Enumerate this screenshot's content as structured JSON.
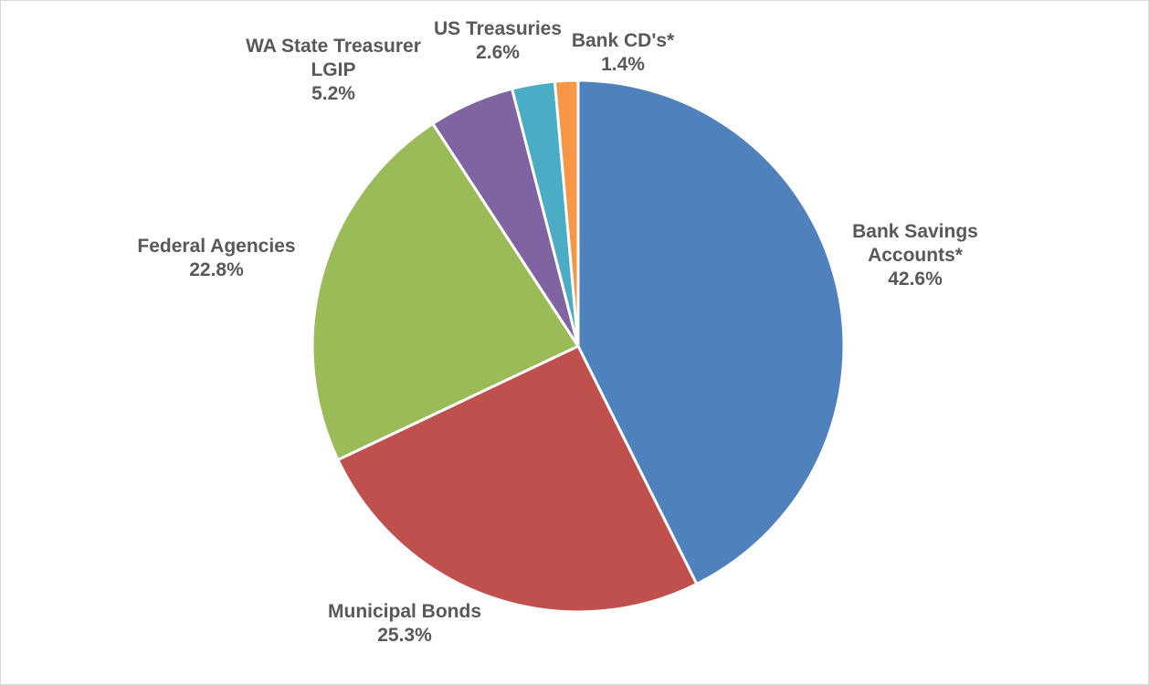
{
  "chart_data": {
    "type": "pie",
    "title": "",
    "slices": [
      {
        "label_lines": [
          "Bank Savings",
          "Accounts*"
        ],
        "value": 42.6,
        "value_label": "42.6%",
        "color": "#4f81bd"
      },
      {
        "label_lines": [
          "Municipal Bonds"
        ],
        "value": 25.3,
        "value_label": "25.3%",
        "color": "#c0504d"
      },
      {
        "label_lines": [
          "Federal Agencies"
        ],
        "value": 22.8,
        "value_label": "22.8%",
        "color": "#9bbb59"
      },
      {
        "label_lines": [
          "WA State Treasurer",
          "LGIP"
        ],
        "value": 5.2,
        "value_label": "5.2%",
        "color": "#8064a2"
      },
      {
        "label_lines": [
          "US Treasuries"
        ],
        "value": 2.6,
        "value_label": "2.6%",
        "color": "#4bacc6"
      },
      {
        "label_lines": [
          "Bank CD's*"
        ],
        "value": 1.4,
        "value_label": "1.4%",
        "color": "#f79646"
      }
    ]
  }
}
